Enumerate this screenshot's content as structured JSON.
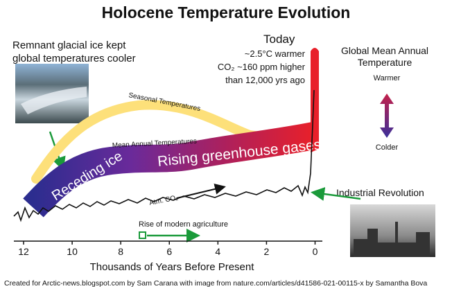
{
  "title": "Holocene Temperature Evolution",
  "left_note": [
    "Remnant glacial ice kept",
    "global temperatures cooler"
  ],
  "today": {
    "heading": "Today",
    "lines": [
      "~2.5°C warmer",
      "CO₂ ~160 ppm higher",
      "than 12,000 yrs ago"
    ]
  },
  "legend": {
    "title": [
      "Global Mean Annual",
      "Temperature"
    ],
    "warmer": "Warmer",
    "colder": "Colder"
  },
  "curve_labels": {
    "seasonal": "Seasonal Temperatures",
    "mean": "Mean Annual Temperatures",
    "receding": "Receding ice",
    "rising": "Rising greenhouse gases",
    "co2": "Atm. CO₂"
  },
  "agriculture": "Rise of modern agriculture",
  "industrial": "Industrial Revolution",
  "x_axis": {
    "label": "Thousands of Years Before Present",
    "xlim": [
      12.4,
      -0.3
    ],
    "xticks": [
      12,
      10,
      8,
      6,
      4,
      2,
      0
    ]
  },
  "credit": "Created for Arctic-news.blogspot.com by Sam Carana with image from nature.com/articles/d41586-021-00115-x by Samantha Bova"
}
